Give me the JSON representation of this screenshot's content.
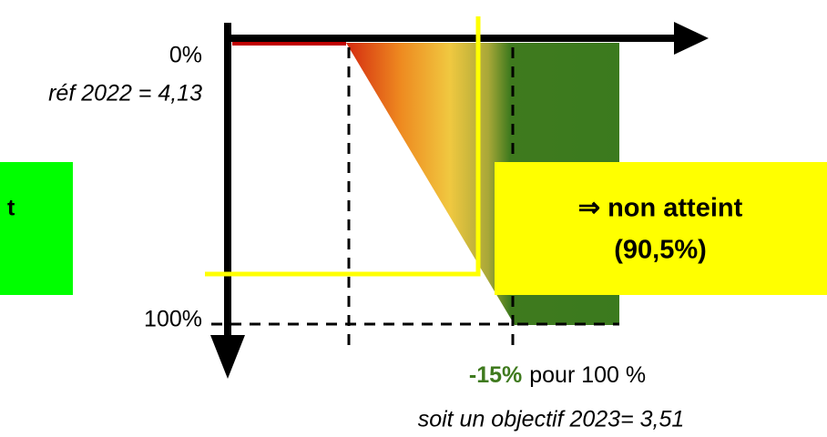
{
  "left_box": {
    "text": "t"
  },
  "axis": {
    "top_label": "0%",
    "reference": "réf 2022 = 4,13",
    "bottom_label": "100%"
  },
  "status_box": {
    "line1": "⇒ non atteint",
    "line2": "(90,5%)"
  },
  "footer": {
    "target_pct": "-15%",
    "target_text": "pour 100 %",
    "objective": "soit un objectif 2023= 3,51"
  }
}
